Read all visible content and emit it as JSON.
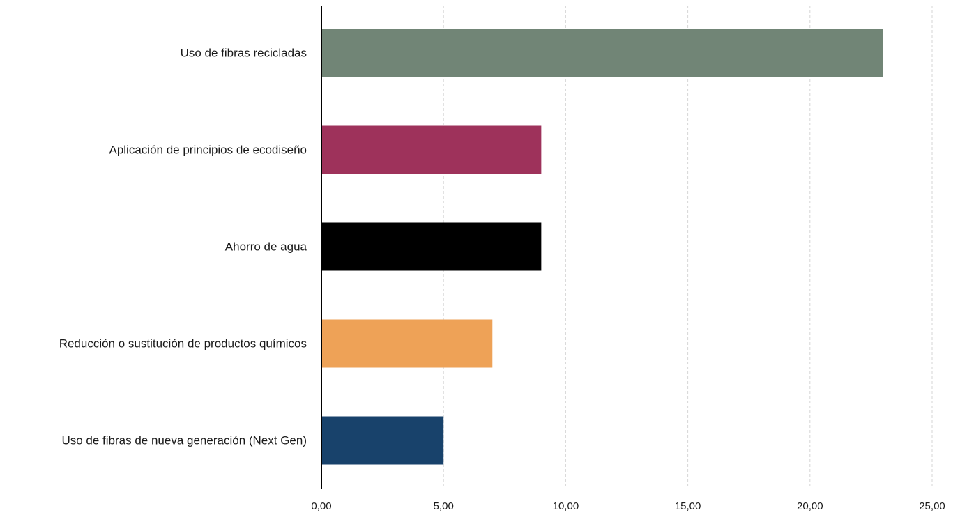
{
  "chart_data": {
    "type": "bar",
    "orientation": "horizontal",
    "categories": [
      "Uso de fibras recicladas",
      "Aplicación de principios de ecodiseño",
      "Ahorro de agua",
      "Reducción o sustitución de productos químicos",
      "Uso de fibras de nueva generación (Next Gen)"
    ],
    "values": [
      23,
      9,
      9,
      7,
      5
    ],
    "colors": [
      "#718576",
      "#9e325b",
      "#000000",
      "#eea257",
      "#18426b"
    ],
    "xlim": [
      0,
      25
    ],
    "xticks": [
      0,
      5,
      10,
      15,
      20,
      25
    ],
    "xtick_labels": [
      "0,00",
      "5,00",
      "10,00",
      "15,00",
      "20,00",
      "25,00"
    ],
    "grid": "vertical-dashed",
    "legend": "none",
    "title": "",
    "xlabel": "",
    "ylabel": ""
  }
}
